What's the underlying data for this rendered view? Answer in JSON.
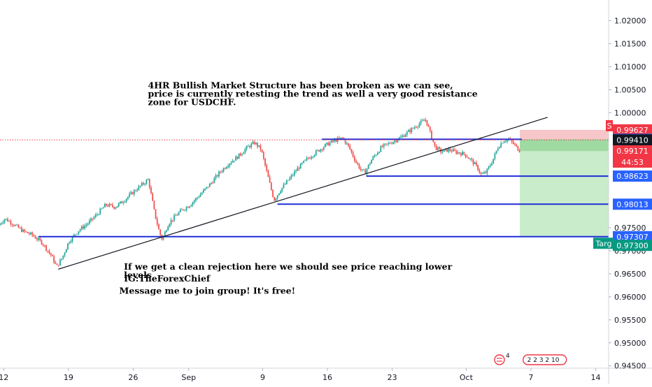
{
  "chart_data": {
    "type": "candlestick",
    "symbol": "USDCHF",
    "timeframe": "4H",
    "y_axis": {
      "range": [
        0.9445,
        1.0245
      ],
      "ticks": [
        1.02,
        1.015,
        1.01,
        1.005,
        1.0,
        0.975,
        0.97,
        0.965,
        0.96,
        0.955,
        0.95,
        0.945
      ],
      "tick_labels": [
        "1.02000",
        "1.01500",
        "1.01000",
        "1.00500",
        "1.00000",
        "0.97500",
        "0.97000",
        "0.96500",
        "0.96000",
        "0.95500",
        "0.95000",
        "0.94500"
      ]
    },
    "x_axis": {
      "ticks": [
        {
          "label": "12",
          "day": 12
        },
        {
          "label": "19",
          "day": 19
        },
        {
          "label": "26",
          "day": 26
        },
        {
          "label": "Sep",
          "day": 32
        },
        {
          "label": "9",
          "day": 40
        },
        {
          "label": "16",
          "day": 47
        },
        {
          "label": "23",
          "day": 54
        },
        {
          "label": "Oct",
          "day": 62
        },
        {
          "label": "7",
          "day": 69
        },
        {
          "label": "14",
          "day": 76
        }
      ],
      "range": [
        11.6,
        77.4
      ]
    },
    "price_path": [
      [
        11.6,
        0.9755
      ],
      [
        12.3,
        0.977
      ],
      [
        13.2,
        0.9758
      ],
      [
        14.3,
        0.9742
      ],
      [
        15.2,
        0.9735
      ],
      [
        16.3,
        0.9718
      ],
      [
        17.3,
        0.969
      ],
      [
        17.9,
        0.9665
      ],
      [
        18.5,
        0.9685
      ],
      [
        19.2,
        0.972
      ],
      [
        20.3,
        0.9745
      ],
      [
        21.3,
        0.976
      ],
      [
        22.3,
        0.978
      ],
      [
        23.2,
        0.98
      ],
      [
        24.2,
        0.9795
      ],
      [
        25.2,
        0.981
      ],
      [
        26.3,
        0.983
      ],
      [
        27.2,
        0.9845
      ],
      [
        27.8,
        0.9855
      ],
      [
        28.5,
        0.978
      ],
      [
        29.0,
        0.974
      ],
      [
        29.3,
        0.9725
      ],
      [
        30.0,
        0.976
      ],
      [
        31.2,
        0.9785
      ],
      [
        32.3,
        0.98
      ],
      [
        33.3,
        0.982
      ],
      [
        34.5,
        0.9845
      ],
      [
        35.5,
        0.987
      ],
      [
        36.5,
        0.989
      ],
      [
        37.5,
        0.9905
      ],
      [
        38.5,
        0.9925
      ],
      [
        39.3,
        0.9935
      ],
      [
        40.0,
        0.992
      ],
      [
        40.5,
        0.988
      ],
      [
        41.0,
        0.984
      ],
      [
        41.4,
        0.981
      ],
      [
        42.0,
        0.983
      ],
      [
        43.0,
        0.9855
      ],
      [
        44.0,
        0.988
      ],
      [
        45.0,
        0.99
      ],
      [
        46.0,
        0.9915
      ],
      [
        47.0,
        0.993
      ],
      [
        48.0,
        0.994
      ],
      [
        48.8,
        0.9945
      ],
      [
        49.5,
        0.9925
      ],
      [
        50.2,
        0.9895
      ],
      [
        50.8,
        0.9875
      ],
      [
        51.2,
        0.987
      ],
      [
        52.0,
        0.99
      ],
      [
        53.0,
        0.9925
      ],
      [
        54.0,
        0.9935
      ],
      [
        55.0,
        0.9945
      ],
      [
        56.0,
        0.996
      ],
      [
        57.0,
        0.9975
      ],
      [
        57.8,
        0.9985
      ],
      [
        58.3,
        0.9955
      ],
      [
        58.8,
        0.9925
      ],
      [
        59.5,
        0.9915
      ],
      [
        60.3,
        0.992
      ],
      [
        61.0,
        0.9915
      ],
      [
        62.0,
        0.991
      ],
      [
        62.8,
        0.9895
      ],
      [
        63.4,
        0.988
      ],
      [
        63.8,
        0.9865
      ],
      [
        64.3,
        0.987
      ],
      [
        65.0,
        0.9895
      ],
      [
        65.6,
        0.9925
      ],
      [
        66.2,
        0.994
      ],
      [
        66.8,
        0.9942
      ],
      [
        67.4,
        0.993
      ],
      [
        67.9,
        0.9918
      ]
    ],
    "levels": [
      {
        "name": "resistance-zone",
        "price": 0.99423,
        "label": "0.99423",
        "from_day": 46.4,
        "to_day": 68.0
      },
      {
        "name": "support-1",
        "price": 0.98623,
        "label": "0.98623",
        "from_day": 51.2,
        "to_day": 77.4
      },
      {
        "name": "support-2",
        "price": 0.98013,
        "label": "0.98013",
        "from_day": 41.6,
        "to_day": 77.4
      },
      {
        "name": "support-3",
        "price": 0.97307,
        "label": "0.97307",
        "from_day": 15.8,
        "to_day": 77.4
      }
    ],
    "trendline": {
      "from": [
        17.9,
        0.966
      ],
      "to": [
        70.8,
        0.999
      ]
    },
    "current_price": {
      "price": 0.99171,
      "label": "0.99171",
      "countdown": "44:53"
    },
    "position": {
      "type": "short",
      "entry": 0.9941,
      "entry_label": "0.99410",
      "stop": 0.99627,
      "stop_label": "0.99627",
      "stop_tag": "S",
      "target": 0.973,
      "target_label": "0.97300",
      "target_tag": "Targ",
      "from_day": 67.8,
      "to_day": 77.4
    },
    "annotations": [
      {
        "lines": [
          "4HR Bullish Market Structure has been broken as we can see,",
          "price is currently retesting the trend as well a very good resistance",
          "zone for USDCHF."
        ],
        "day": 27.6,
        "price": 1.00527
      },
      {
        "lines": [
          "If we get a clean rejection here we should see price reaching lower",
          "levels"
        ],
        "day": 25.0,
        "price": 0.96591
      },
      {
        "lines": [
          "IG:TheForexChief"
        ],
        "day": 25.0,
        "price": 0.96333
      },
      {
        "lines": [
          "Message me to join group! It's free!"
        ],
        "day": 24.5,
        "price": 0.96063
      }
    ],
    "events_row": {
      "text": "2 2 3 2 10",
      "count_flag": "4"
    },
    "colors": {
      "up": "#26a69a",
      "down": "#ef5350",
      "level": "#1f2fd6",
      "profit_zone": "#c9ecca",
      "entry_zone": "#9fdaa3",
      "loss_zone": "#f7c6c9",
      "stop_badge": "#f23645",
      "entry_badge": "#131722",
      "price_badge": "#f23645",
      "target_badge": "#089981",
      "level_badge": "#2962ff"
    }
  }
}
